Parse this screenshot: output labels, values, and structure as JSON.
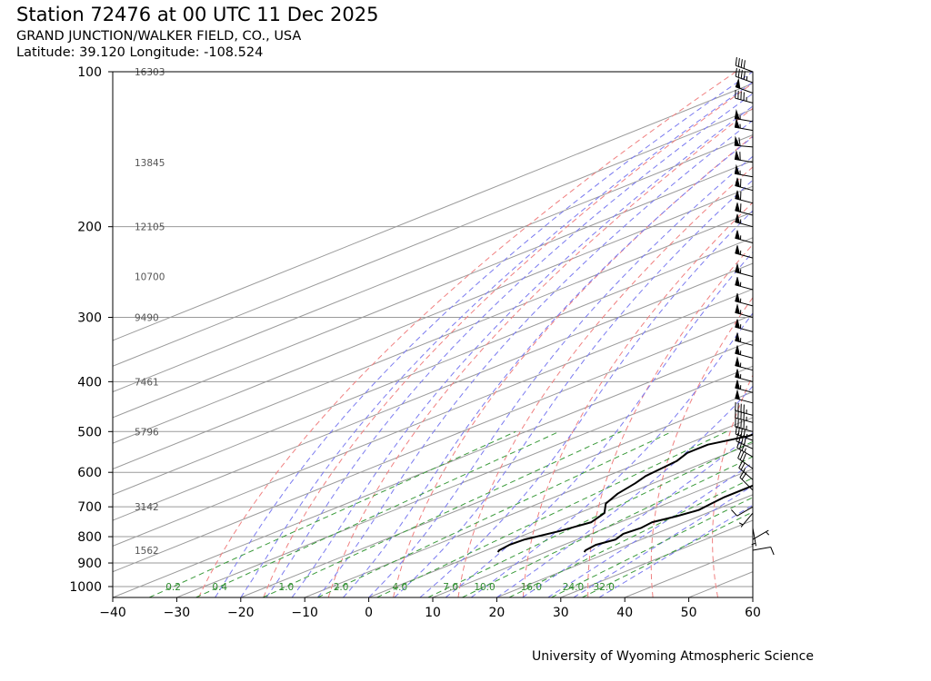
{
  "header": {
    "title": "Station 72476 at 00 UTC 11 Dec 2025",
    "station_name": "GRAND JUNCTION/WALKER FIELD, CO., USA",
    "location": "Latitude: 39.120 Longitude: -108.524"
  },
  "footer": {
    "credit": "University of Wyoming Atmospheric Science"
  },
  "chart_data": {
    "type": "line",
    "chart_kind": "skew-T log-p sounding",
    "xlim": [
      -40,
      60
    ],
    "ylim": [
      1050,
      100
    ],
    "y_scale": "log",
    "x_ticks": [
      "−40",
      "−30",
      "−20",
      "−10",
      "0",
      "10",
      "20",
      "30",
      "40",
      "50",
      "60"
    ],
    "x_tick_values": [
      -40,
      -30,
      -20,
      -10,
      0,
      10,
      20,
      30,
      40,
      50,
      60
    ],
    "y_ticks": [
      "100",
      "200",
      "300",
      "400",
      "500",
      "600",
      "700",
      "800",
      "900",
      "1000"
    ],
    "y_tick_values": [
      100,
      200,
      300,
      400,
      500,
      600,
      700,
      800,
      900,
      1000
    ],
    "height_labels": [
      {
        "p": 100,
        "text": "16303"
      },
      {
        "p": 150,
        "text": "13845"
      },
      {
        "p": 200,
        "text": "12105"
      },
      {
        "p": 250,
        "text": "10700"
      },
      {
        "p": 300,
        "text": "9490"
      },
      {
        "p": 400,
        "text": "7461"
      },
      {
        "p": 500,
        "text": "5796"
      },
      {
        "p": 700,
        "text": "3142"
      },
      {
        "p": 850,
        "text": "1562"
      }
    ],
    "mixing_ratio_labels": [
      "0.2",
      "0.4",
      "1.0",
      "2.0",
      "4.0",
      "7.0",
      "10.0",
      "16.0",
      "24.0",
      "32.0"
    ],
    "mixing_ratio_values": [
      0.2,
      0.4,
      1.0,
      2.0,
      4.0,
      7.0,
      10.0,
      16.0,
      24.0,
      32.0
    ],
    "mixing_ratio_label_pressure": 1000,
    "skew_deg_per_decade_ln": 87,
    "grid": true,
    "colors": {
      "profile": "#000000",
      "isotherm": "#9a9a9a",
      "isobar": "#9a9a9a",
      "dry_adiabat": "#f08080",
      "moist_adiabat": "#7b7bf0",
      "mixing_ratio": "#3a9a3a",
      "height_label": "#555555"
    },
    "series": [
      {
        "role": "temperature",
        "points": [
          [
            857,
            16.0
          ],
          [
            850,
            15.5
          ],
          [
            830,
            15.0
          ],
          [
            810,
            16.0
          ],
          [
            790,
            15.0
          ],
          [
            770,
            15.5
          ],
          [
            750,
            15.0
          ],
          [
            730,
            16.5
          ],
          [
            710,
            17.5
          ],
          [
            690,
            17.0
          ],
          [
            670,
            16.5
          ],
          [
            640,
            16.5
          ],
          [
            610,
            16.0
          ],
          [
            580,
            15.0
          ],
          [
            550,
            14.5
          ],
          [
            520,
            13.5
          ],
          [
            500,
            11.8
          ],
          [
            460,
            8.5
          ],
          [
            420,
            5.8
          ],
          [
            400,
            4.0
          ],
          [
            360,
            0.5
          ],
          [
            320,
            -4.0
          ],
          [
            300,
            -6.5
          ],
          [
            270,
            -10.5
          ],
          [
            250,
            -13.0
          ],
          [
            230,
            -16.5
          ],
          [
            215,
            -19.0
          ],
          [
            200,
            -21.5
          ],
          [
            185,
            -23.5
          ],
          [
            170,
            -25.0
          ],
          [
            155,
            -22.0
          ],
          [
            140,
            -18.0
          ],
          [
            132,
            -17.0
          ],
          [
            125,
            -11.5
          ],
          [
            118,
            -8.0
          ],
          [
            110,
            -6.5
          ],
          [
            100,
            -7.8
          ]
        ]
      },
      {
        "role": "dewpoint",
        "points": [
          [
            857,
            2.5
          ],
          [
            850,
            2.0
          ],
          [
            830,
            1.5
          ],
          [
            810,
            1.8
          ],
          [
            780,
            4.0
          ],
          [
            750,
            5.5
          ],
          [
            720,
            4.0
          ],
          [
            690,
            0.5
          ],
          [
            660,
            -1.5
          ],
          [
            630,
            -2.8
          ],
          [
            610,
            -4.0
          ],
          [
            590,
            -4.5
          ],
          [
            570,
            -5.0
          ],
          [
            550,
            -6.5
          ],
          [
            530,
            -6.5
          ],
          [
            510,
            -3.5
          ],
          [
            490,
            -2.8
          ],
          [
            465,
            -5.0
          ],
          [
            445,
            -6.5
          ],
          [
            420,
            -8.0
          ],
          [
            405,
            -10.0
          ],
          [
            390,
            -14.0
          ],
          [
            370,
            -16.0
          ],
          [
            340,
            -18.5
          ],
          [
            320,
            -20.5
          ],
          [
            300,
            -22.5
          ],
          [
            270,
            -25.0
          ],
          [
            250,
            -26.5
          ],
          [
            225,
            -30.0
          ],
          [
            200,
            -33.0
          ],
          [
            175,
            -37.5
          ],
          [
            172,
            -35.0
          ],
          [
            160,
            -34.0
          ],
          [
            145,
            -33.0
          ],
          [
            135,
            -33.0
          ],
          [
            125,
            -31.0
          ],
          [
            115,
            -33.5
          ],
          [
            107,
            -33.5
          ],
          [
            100,
            -33.5
          ]
        ]
      }
    ],
    "wind_barbs": [
      {
        "p": 100,
        "dir": 290,
        "kt": 40
      },
      {
        "p": 105,
        "dir": 290,
        "kt": 45
      },
      {
        "p": 110,
        "dir": 290,
        "kt": 50
      },
      {
        "p": 115,
        "dir": 285,
        "kt": 45
      },
      {
        "p": 125,
        "dir": 280,
        "kt": 55
      },
      {
        "p": 130,
        "dir": 280,
        "kt": 55
      },
      {
        "p": 140,
        "dir": 275,
        "kt": 60
      },
      {
        "p": 150,
        "dir": 280,
        "kt": 60
      },
      {
        "p": 160,
        "dir": 280,
        "kt": 55
      },
      {
        "p": 170,
        "dir": 285,
        "kt": 60
      },
      {
        "p": 180,
        "dir": 285,
        "kt": 60
      },
      {
        "p": 190,
        "dir": 285,
        "kt": 60
      },
      {
        "p": 200,
        "dir": 285,
        "kt": 55
      },
      {
        "p": 215,
        "dir": 285,
        "kt": 55
      },
      {
        "p": 230,
        "dir": 285,
        "kt": 55
      },
      {
        "p": 250,
        "dir": 285,
        "kt": 55
      },
      {
        "p": 265,
        "dir": 285,
        "kt": 55
      },
      {
        "p": 285,
        "dir": 285,
        "kt": 55
      },
      {
        "p": 300,
        "dir": 285,
        "kt": 55
      },
      {
        "p": 320,
        "dir": 285,
        "kt": 55
      },
      {
        "p": 340,
        "dir": 285,
        "kt": 55
      },
      {
        "p": 360,
        "dir": 285,
        "kt": 55
      },
      {
        "p": 380,
        "dir": 285,
        "kt": 55
      },
      {
        "p": 400,
        "dir": 285,
        "kt": 55
      },
      {
        "p": 420,
        "dir": 285,
        "kt": 55
      },
      {
        "p": 440,
        "dir": 285,
        "kt": 50
      },
      {
        "p": 465,
        "dir": 285,
        "kt": 45
      },
      {
        "p": 480,
        "dir": 285,
        "kt": 45
      },
      {
        "p": 500,
        "dir": 285,
        "kt": 45
      },
      {
        "p": 520,
        "dir": 290,
        "kt": 45
      },
      {
        "p": 540,
        "dir": 295,
        "kt": 40
      },
      {
        "p": 560,
        "dir": 300,
        "kt": 35
      },
      {
        "p": 590,
        "dir": 305,
        "kt": 30
      },
      {
        "p": 620,
        "dir": 310,
        "kt": 25
      },
      {
        "p": 650,
        "dir": 315,
        "kt": 20
      },
      {
        "p": 700,
        "dir": 240,
        "kt": 10
      },
      {
        "p": 720,
        "dir": 220,
        "kt": 5
      },
      {
        "p": 770,
        "dir": 170,
        "kt": 5
      },
      {
        "p": 810,
        "dir": 60,
        "kt": 5
      },
      {
        "p": 850,
        "dir": 80,
        "kt": 10
      }
    ]
  }
}
